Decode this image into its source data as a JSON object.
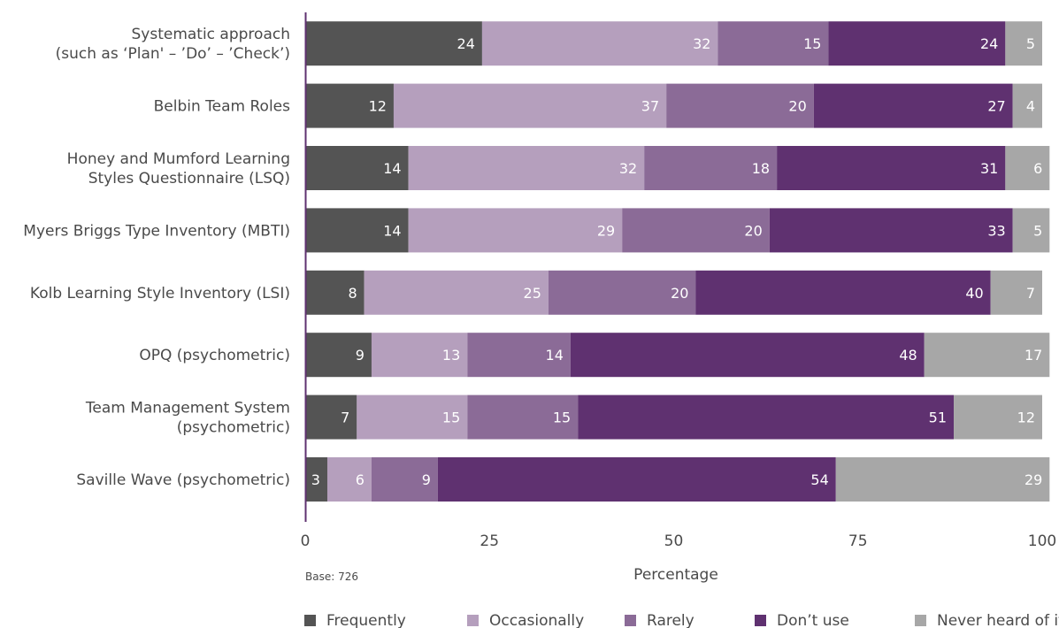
{
  "chart_data": {
    "type": "bar",
    "orientation": "horizontal",
    "stacked": true,
    "categories": [
      [
        "Systematic approach",
        "(such as ‘Plan' – ’Do’ – ’Check’)"
      ],
      [
        "Belbin Team Roles"
      ],
      [
        "Honey and Mumford Learning",
        "Styles Questionnaire (LSQ)"
      ],
      [
        "Myers Briggs Type Inventory (MBTI)"
      ],
      [
        "Kolb Learning Style Inventory (LSI)"
      ],
      [
        "OPQ (psychometric)"
      ],
      [
        "Team Management System",
        "(psychometric)"
      ],
      [
        "Saville Wave (psychometric)"
      ]
    ],
    "series": [
      {
        "name": "Frequently",
        "color": "#545454",
        "values": [
          24,
          12,
          14,
          14,
          8,
          9,
          7,
          3
        ]
      },
      {
        "name": "Occasionally",
        "color": "#b59fbd",
        "values": [
          32,
          37,
          32,
          29,
          25,
          13,
          15,
          6
        ]
      },
      {
        "name": "Rarely",
        "color": "#8b6b97",
        "values": [
          15,
          20,
          18,
          20,
          20,
          14,
          15,
          9
        ]
      },
      {
        "name": "Don’t use",
        "color": "#5f3170",
        "values": [
          24,
          27,
          31,
          33,
          40,
          48,
          51,
          54
        ]
      },
      {
        "name": "Never heard of it",
        "color": "#a7a7a7",
        "values": [
          5,
          4,
          6,
          5,
          7,
          17,
          12,
          29
        ]
      }
    ],
    "xlabel": "Percentage",
    "xlim": [
      0,
      100
    ],
    "xticks": [
      0,
      25,
      50,
      75,
      100
    ],
    "note": "Base: 726",
    "legend_position": "bottom",
    "grid": false
  }
}
